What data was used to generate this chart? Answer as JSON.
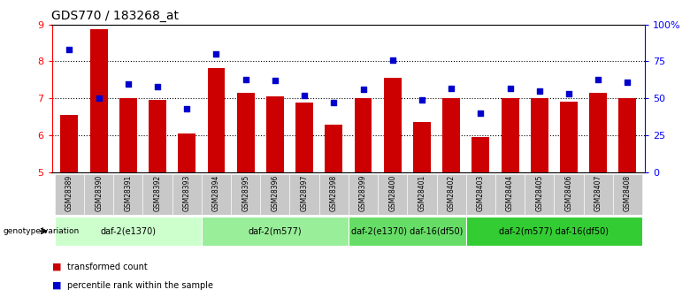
{
  "title": "GDS770 / 183268_at",
  "samples": [
    "GSM28389",
    "GSM28390",
    "GSM28391",
    "GSM28392",
    "GSM28393",
    "GSM28394",
    "GSM28395",
    "GSM28396",
    "GSM28397",
    "GSM28398",
    "GSM28399",
    "GSM28400",
    "GSM28401",
    "GSM28402",
    "GSM28403",
    "GSM28404",
    "GSM28405",
    "GSM28406",
    "GSM28407",
    "GSM28408"
  ],
  "transformed_count": [
    6.55,
    8.88,
    7.0,
    6.95,
    6.05,
    7.82,
    7.15,
    7.05,
    6.88,
    6.3,
    7.0,
    7.55,
    6.35,
    7.0,
    5.95,
    7.0,
    7.0,
    6.9,
    7.15,
    7.0
  ],
  "percentile_rank": [
    83,
    50,
    60,
    58,
    43,
    80,
    63,
    62,
    52,
    47,
    56,
    76,
    49,
    57,
    40,
    57,
    55,
    53,
    63,
    61
  ],
  "groups": [
    {
      "label": "daf-2(e1370)",
      "start": 0,
      "end": 4,
      "color": "#ccffcc"
    },
    {
      "label": "daf-2(m577)",
      "start": 5,
      "end": 9,
      "color": "#99ee99"
    },
    {
      "label": "daf-2(e1370) daf-16(df50)",
      "start": 10,
      "end": 13,
      "color": "#66dd66"
    },
    {
      "label": "daf-2(m577) daf-16(df50)",
      "start": 14,
      "end": 19,
      "color": "#33cc33"
    }
  ],
  "ylim": [
    5,
    9
  ],
  "yticks": [
    5,
    6,
    7,
    8,
    9
  ],
  "right_yticks": [
    0,
    25,
    50,
    75,
    100
  ],
  "right_ylabels": [
    "0",
    "25",
    "50",
    "75",
    "100%"
  ],
  "bar_color": "#cc0000",
  "dot_color": "#0000cc",
  "background_color": "#ffffff",
  "genotype_label": "genotype/variation",
  "legend_bar": "transformed count",
  "legend_dot": "percentile rank within the sample",
  "title_fontsize": 10,
  "axis_fontsize": 8,
  "label_fontsize": 7,
  "group_fontsize": 7,
  "sample_fontsize": 5.5
}
